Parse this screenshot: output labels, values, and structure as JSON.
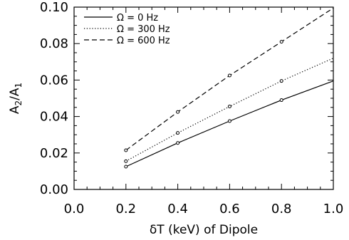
{
  "chart_data": {
    "type": "line",
    "xlabel": "δT (keV) of Dipole",
    "ylabel_main": "A",
    "ylabel_sub2": "2",
    "ylabel_slash": "/A",
    "ylabel_sub1": "1",
    "xlim": [
      0.0,
      1.0
    ],
    "ylim": [
      0.0,
      0.1
    ],
    "x_ticks": [
      0.0,
      0.2,
      0.4,
      0.6,
      0.8,
      1.0
    ],
    "x_tick_labels": [
      "0.0",
      "0.2",
      "0.4",
      "0.6",
      "0.8",
      "1.0"
    ],
    "y_ticks": [
      0.0,
      0.02,
      0.04,
      0.06,
      0.08,
      0.1
    ],
    "y_tick_labels": [
      "0.00",
      "0.02",
      "0.04",
      "0.06",
      "0.08",
      "0.10"
    ],
    "grid": false,
    "legend_position": "top-left",
    "series": [
      {
        "name": "Ω = 0 Hz",
        "style": "solid",
        "x": [
          0.2,
          0.4,
          0.6,
          0.8
        ],
        "y": [
          0.0125,
          0.0255,
          0.0375,
          0.049
        ],
        "line_end": [
          1.0,
          0.0595
        ]
      },
      {
        "name": "Ω = 300 Hz",
        "style": "dotted",
        "x": [
          0.2,
          0.4,
          0.6,
          0.8
        ],
        "y": [
          0.0155,
          0.031,
          0.0455,
          0.0595
        ],
        "line_end": [
          1.0,
          0.072
        ]
      },
      {
        "name": "Ω = 600 Hz",
        "style": "dashed",
        "x": [
          0.2,
          0.4,
          0.6,
          0.8
        ],
        "y": [
          0.0215,
          0.0425,
          0.0625,
          0.081
        ],
        "line_end": [
          1.0,
          0.0995
        ]
      }
    ]
  }
}
